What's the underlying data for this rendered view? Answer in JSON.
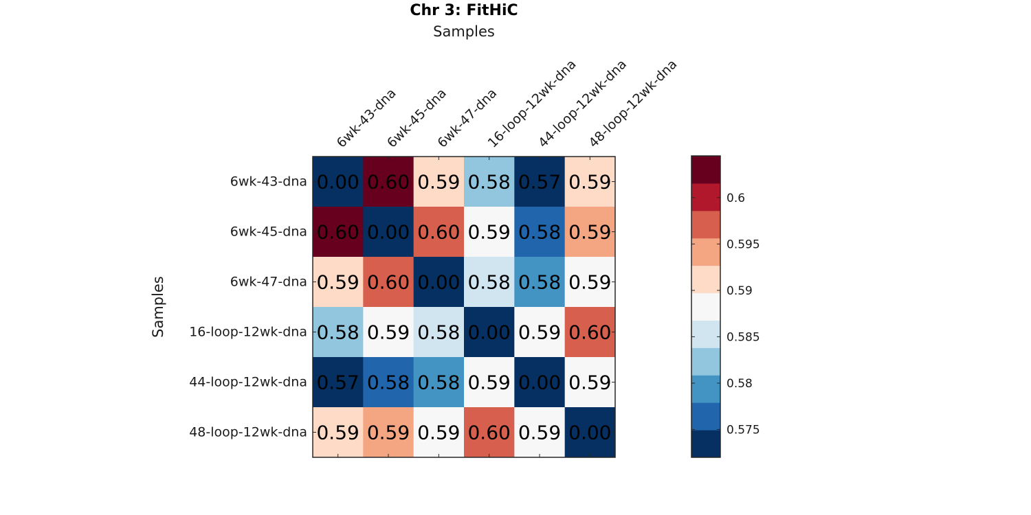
{
  "chart_data": {
    "type": "heatmap",
    "title": "Chr 3: FitHiC",
    "xlabel": "Samples",
    "ylabel": "Samples",
    "x_categories": [
      "6wk-43-dna",
      "6wk-45-dna",
      "6wk-47-dna",
      "16-loop-12wk-dna",
      "44-loop-12wk-dna",
      "48-loop-12wk-dna"
    ],
    "y_categories": [
      "6wk-43-dna",
      "6wk-45-dna",
      "6wk-47-dna",
      "16-loop-12wk-dna",
      "44-loop-12wk-dna",
      "48-loop-12wk-dna"
    ],
    "x_axis_position": "top",
    "values": [
      [
        0.0,
        0.604,
        0.591,
        0.583,
        0.572,
        0.592
      ],
      [
        0.604,
        0.0,
        0.596,
        0.587,
        0.576,
        0.595
      ],
      [
        0.591,
        0.596,
        0.0,
        0.584,
        0.579,
        0.589
      ],
      [
        0.583,
        0.587,
        0.584,
        0.0,
        0.588,
        0.598
      ],
      [
        0.572,
        0.576,
        0.579,
        0.588,
        0.0,
        0.589
      ],
      [
        0.592,
        0.595,
        0.589,
        0.598,
        0.589,
        0.0
      ]
    ],
    "labels": [
      [
        "0.00",
        "0.60",
        "0.59",
        "0.58",
        "0.57",
        "0.59"
      ],
      [
        "0.60",
        "0.00",
        "0.60",
        "0.59",
        "0.58",
        "0.59"
      ],
      [
        "0.59",
        "0.60",
        "0.00",
        "0.58",
        "0.58",
        "0.59"
      ],
      [
        "0.58",
        "0.59",
        "0.58",
        "0.00",
        "0.59",
        "0.60"
      ],
      [
        "0.57",
        "0.58",
        "0.58",
        "0.59",
        "0.00",
        "0.59"
      ],
      [
        "0.59",
        "0.59",
        "0.59",
        "0.60",
        "0.59",
        "0.00"
      ]
    ],
    "colorbar": {
      "min": 0.572,
      "max": 0.6045,
      "ticks": [
        0.575,
        0.58,
        0.585,
        0.59,
        0.595,
        0.6
      ],
      "tick_labels": [
        "0.575",
        "0.58",
        "0.585",
        "0.59",
        "0.595",
        "0.6"
      ],
      "colors": [
        "#053061",
        "#2166ac",
        "#4393c3",
        "#92c5de",
        "#d1e5f0",
        "#f7f7f7",
        "#fddbc7",
        "#f4a582",
        "#d6604d",
        "#b2182b",
        "#67001f"
      ]
    },
    "grid": false,
    "legend": "colorbar-right"
  }
}
